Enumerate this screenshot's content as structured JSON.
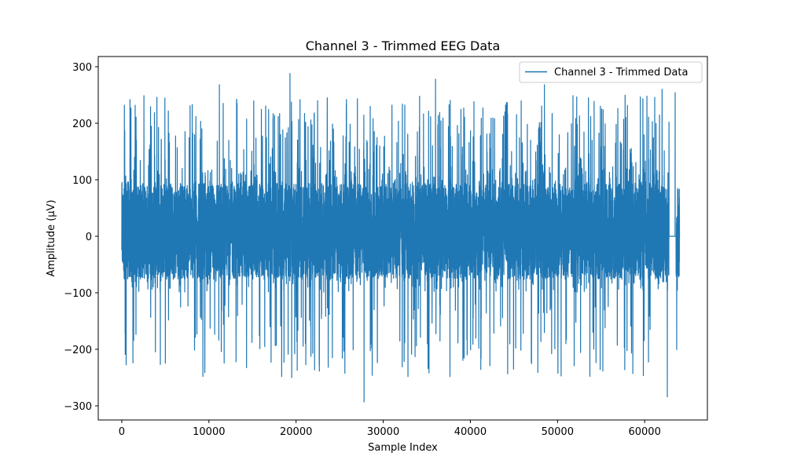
{
  "chart_data": {
    "type": "line",
    "title": "Channel 3 - Trimmed EEG Data",
    "xlabel": "Sample Index",
    "ylabel": "Amplitude (µV)",
    "xlim": [
      -2700,
      67200
    ],
    "ylim": [
      -325,
      318
    ],
    "xticks": [
      0,
      10000,
      20000,
      30000,
      40000,
      50000,
      60000
    ],
    "xtick_labels": [
      "0",
      "10000",
      "20000",
      "30000",
      "40000",
      "50000",
      "60000"
    ],
    "yticks": [
      -300,
      -200,
      -100,
      0,
      100,
      200,
      300
    ],
    "ytick_labels": [
      "−300",
      "−200",
      "−100",
      "0",
      "100",
      "200",
      "300"
    ],
    "grid": false,
    "legend_position": "top-right",
    "series": [
      {
        "name": "Channel 3 - Trimmed Data",
        "color": "#1f77b4",
        "x_range": [
          0,
          64000
        ],
        "n_points": 64000,
        "typical_range": [
          -80,
          100
        ],
        "notable_peaks": [
          {
            "x": 300,
            "y": 232
          },
          {
            "x": 400,
            "y": -209
          },
          {
            "x": 11200,
            "y": 268
          },
          {
            "x": 19300,
            "y": 288
          },
          {
            "x": 19500,
            "y": -250
          },
          {
            "x": 27800,
            "y": -293
          },
          {
            "x": 36000,
            "y": 278
          },
          {
            "x": 48500,
            "y": 268
          },
          {
            "x": 62000,
            "y": 260
          },
          {
            "x": 62600,
            "y": -284
          },
          {
            "x": 63500,
            "y": 254
          }
        ],
        "flat_segment": {
          "x_start": 62800,
          "x_end": 63600,
          "y": 0
        }
      }
    ]
  }
}
